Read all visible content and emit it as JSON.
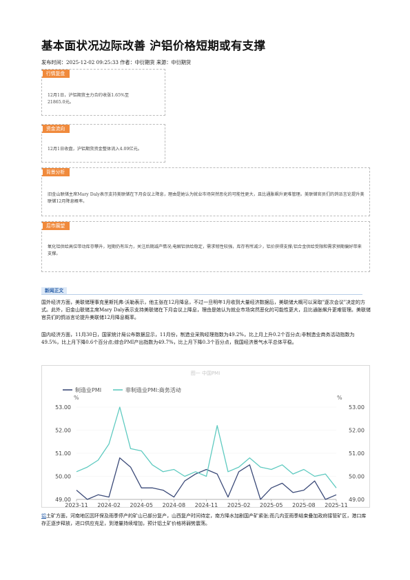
{
  "article": {
    "title": "基本面状况边际改善 沪铝价格短期或有支撑",
    "meta": "发布时间：2025-12-02 09:25:33 作者：中衍期货 来源：中衍期货"
  },
  "boxes": [
    {
      "tag": "行情复盘",
      "text": "12月1日，沪铝期货主力合约收涨1.65%至21865.0元。"
    },
    {
      "tag": "资金流向",
      "text": "12月1日收盘，沪铝期货资金整体流入4.09亿元。"
    },
    {
      "tag": "背景分析",
      "text": "旧金山联储主席Mary Daly表示支持美联储在下月会议上降息，理由是她认为就业市场突然恶化的可能性更大，且比通胀飙升更难管理。美联储官员们的鸽派言论提升美联储12月降息概率。"
    },
    {
      "tag": "后市展望",
      "text": "氧化铝供给高位带动库存攀升，短期仍有压力，关注后期减产情况;电解铝供给稳定，需求韧性较强，库存有所减少，铝价获得支撑;铝合金供给受限和需求预期偏好带来支撑。"
    }
  ],
  "section": {
    "label": "新闻正文"
  },
  "paragraphs": [
    "国外经济方面，美联储理事克里斯托弗·沃勒表示，他主张在12月降息，不过一旦明年1月收到大量经济数据后，美联储大概可以采取\"逐次会议\"决定的方式。此外，旧金山联储主席Mary Daly表示支持美联储在下月会议上降息，理由是她认为就业市场突然恶化的可能性更大，且比通胀飙升更难管理。美联储官员们的鸽派言论提升美联储12月降息概率。",
    "国内经济方面，11月30日，国家统计局公布数据显示，11月份，制造业采购经理指数为49.2%，比上月上升0.2个百分点;非制造业商务活动指数为49.5%，比上月下降0.6个百分点;综合PMI产出指数为49.7%，比上月下降0.3个百分点，我国经济景气水平总体平稳。"
  ],
  "bottom": {
    "link_text": "铝",
    "text": "土矿方面，河南地区因环保及雨季停产的矿山已部分复产，山西复产时间待定，南方降水加剧国产矿紧张;而几内亚雨季结束叠加政府接管矿区，港口库存正逐步释放，进口供应充足，到港量持续增加，预计铝土矿价格将弱势震荡。"
  },
  "chart_data": {
    "type": "line",
    "title": "图一 中国PMI",
    "y_unit_left": "%",
    "y_unit_right": "%",
    "ylim": [
      49.0,
      53.0
    ],
    "y_ticks": [
      "53.00",
      "52.00",
      "51.00",
      "50.00",
      "49.00"
    ],
    "x_ticks": [
      "2023-11",
      "2024-02",
      "2024-05",
      "2024-08",
      "2024-11",
      "2025-02",
      "2025-05",
      "2025-08",
      "2025-11"
    ],
    "legend_position": "top-left",
    "colors": {
      "manufacturing": "#3b4a78",
      "non_manufacturing": "#5ecac0"
    },
    "x": [
      "2023-11",
      "2023-12",
      "2024-01",
      "2024-02",
      "2024-03",
      "2024-04",
      "2024-05",
      "2024-06",
      "2024-07",
      "2024-08",
      "2024-09",
      "2024-10",
      "2024-11",
      "2024-12",
      "2025-01",
      "2025-02",
      "2025-03",
      "2025-04",
      "2025-05",
      "2025-06",
      "2025-07",
      "2025-08",
      "2025-09",
      "2025-10",
      "2025-11"
    ],
    "series": [
      {
        "name": "制造业PMI",
        "values": [
          49.4,
          49.0,
          49.2,
          49.1,
          50.8,
          50.4,
          49.5,
          49.5,
          49.4,
          49.1,
          49.8,
          50.1,
          50.3,
          50.1,
          49.1,
          50.2,
          50.5,
          49.0,
          49.5,
          49.7,
          49.3,
          49.4,
          49.8,
          49.0,
          49.2
        ]
      },
      {
        "name": "非制造业PMI:商务活动",
        "values": [
          50.2,
          50.4,
          50.7,
          51.4,
          53.0,
          51.2,
          51.1,
          50.5,
          50.2,
          50.3,
          50.0,
          50.2,
          50.0,
          52.2,
          50.2,
          50.4,
          50.8,
          50.4,
          50.3,
          50.5,
          50.1,
          50.3,
          50.0,
          50.1,
          49.5
        ]
      }
    ]
  }
}
